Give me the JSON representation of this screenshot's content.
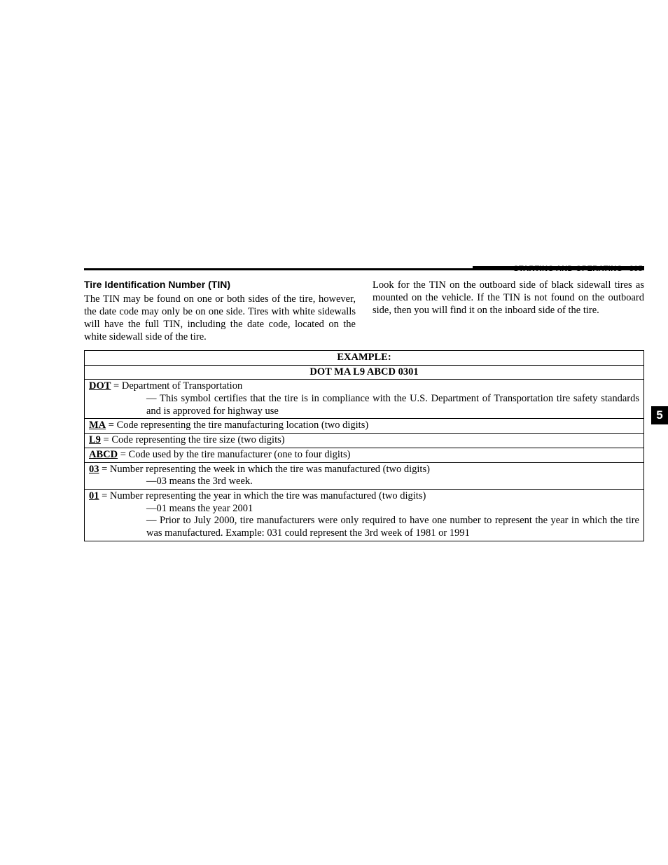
{
  "header": {
    "section": "STARTING AND OPERATING",
    "page_number": "305"
  },
  "side_tab": "5",
  "left_column": {
    "title": "Tire Identification Number (TIN)",
    "paragraph": "The TIN may be found on one or both sides of the tire, however, the date code may only be on one side. Tires with white sidewalls will have the full TIN, including the date code, located on the white sidewall side of the tire."
  },
  "right_column": {
    "paragraph": "Look for the TIN on the outboard side of black sidewall tires as mounted on the vehicle. If the TIN is not found on the outboard side, then you will find it on the inboard side of the tire."
  },
  "table": {
    "heading": "EXAMPLE:",
    "sample": "DOT MA L9 ABCD 0301",
    "rows": {
      "dot": {
        "term": "DOT",
        "def": " = Department of Transportation",
        "note": "— This symbol certifies that the tire is in compliance with the U.S. Department of Transportation tire safety standards and is approved for highway use"
      },
      "ma": {
        "term": "MA",
        "def": " = Code representing the tire manufacturing location (two digits)"
      },
      "l9": {
        "term": "L9",
        "def": " = Code representing the tire size (two digits)"
      },
      "abcd": {
        "term": "ABCD",
        "def": " = Code used by the tire manufacturer (one to four digits)"
      },
      "r03": {
        "term": "03",
        "def": " = Number representing the week in which the tire was manufactured (two digits)",
        "note": "—03 means the 3rd week."
      },
      "r01": {
        "term": "01",
        "def": " = Number representing the year in which the tire was manufactured (two digits)",
        "note1": "—01 means the year 2001",
        "note2": "— Prior to July 2000, tire manufacturers were only required to have one number to represent the year in which the tire was manufactured. Example: 031 could represent the 3rd week of 1981 or 1991"
      }
    }
  }
}
